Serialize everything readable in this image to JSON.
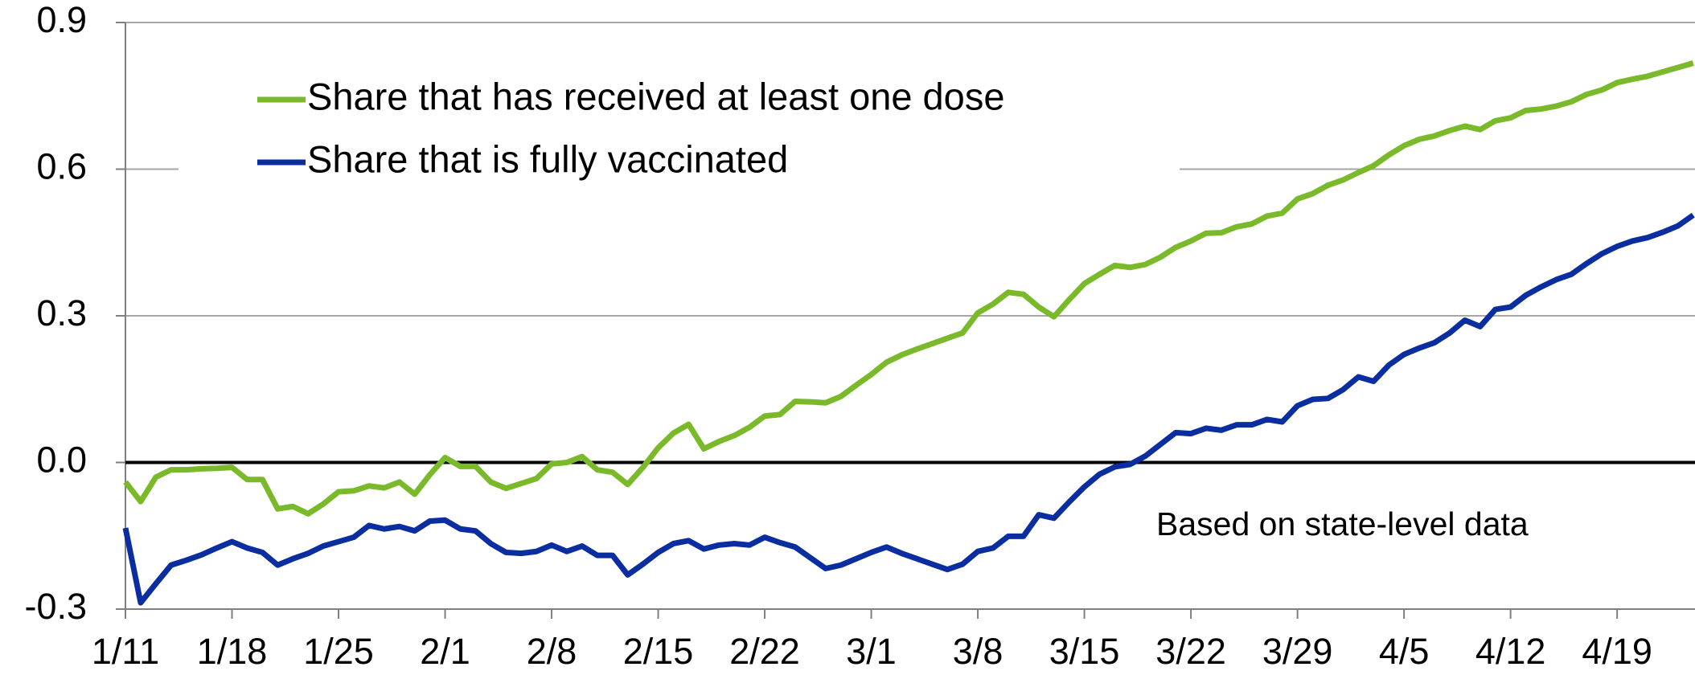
{
  "chart_data": {
    "type": "line",
    "categories": [
      "1/11",
      null,
      null,
      null,
      null,
      null,
      null,
      "1/18",
      null,
      null,
      null,
      null,
      null,
      null,
      "1/25",
      null,
      null,
      null,
      null,
      null,
      null,
      "2/1",
      null,
      null,
      null,
      null,
      null,
      null,
      "2/8",
      null,
      null,
      null,
      null,
      null,
      null,
      "2/15",
      null,
      null,
      null,
      null,
      null,
      null,
      "2/22",
      null,
      null,
      null,
      null,
      null,
      null,
      "3/1",
      null,
      null,
      null,
      null,
      null,
      null,
      "3/8",
      null,
      null,
      null,
      null,
      null,
      null,
      "3/15",
      null,
      null,
      null,
      null,
      null,
      null,
      "3/22",
      null,
      null,
      null,
      null,
      null,
      null,
      "3/29",
      null,
      null,
      null,
      null,
      null,
      null,
      "4/5",
      null,
      null,
      null,
      null,
      null,
      null,
      "4/12",
      null,
      null,
      null,
      null,
      null,
      null,
      "4/19",
      null,
      null,
      null,
      null,
      null
    ],
    "series": [
      {
        "name": "Share that has received at least one dose",
        "color": "#7aba2a",
        "values": [
          -0.04,
          -0.08,
          -0.03,
          -0.015,
          -0.015,
          -0.013,
          -0.012,
          -0.01,
          -0.035,
          -0.035,
          -0.095,
          -0.09,
          -0.105,
          -0.085,
          -0.06,
          -0.058,
          -0.048,
          -0.052,
          -0.04,
          -0.065,
          -0.025,
          0.01,
          -0.008,
          -0.008,
          -0.04,
          -0.053,
          -0.043,
          -0.033,
          -0.003,
          0,
          0.012,
          -0.015,
          -0.02,
          -0.045,
          -0.01,
          0.03,
          0.06,
          0.078,
          0.028,
          0.043,
          0.055,
          0.072,
          0.095,
          0.098,
          0.125,
          0.124,
          0.122,
          0.135,
          0.158,
          0.18,
          0.205,
          0.22,
          0.232,
          0.243,
          0.254,
          0.265,
          0.306,
          0.324,
          0.348,
          0.344,
          0.318,
          0.298,
          0.333,
          0.366,
          0.385,
          0.403,
          0.399,
          0.405,
          0.42,
          0.44,
          0.453,
          0.469,
          0.47,
          0.482,
          0.488,
          0.504,
          0.51,
          0.539,
          0.55,
          0.567,
          0.578,
          0.593,
          0.607,
          0.629,
          0.648,
          0.661,
          0.668,
          0.679,
          0.688,
          0.681,
          0.699,
          0.705,
          0.72,
          0.723,
          0.729,
          0.738,
          0.753,
          0.762,
          0.777,
          0.784,
          0.79,
          0.799,
          0.808,
          0.817
        ]
      },
      {
        "name": "Share that is fully vaccinated",
        "color": "#0a2ea0",
        "values": [
          -0.134,
          -0.287,
          -0.248,
          -0.21,
          -0.2,
          -0.189,
          -0.175,
          -0.162,
          -0.175,
          -0.184,
          -0.21,
          -0.197,
          -0.186,
          -0.171,
          -0.162,
          -0.153,
          -0.129,
          -0.136,
          -0.131,
          -0.14,
          -0.12,
          -0.118,
          -0.136,
          -0.14,
          -0.166,
          -0.184,
          -0.186,
          -0.182,
          -0.169,
          -0.182,
          -0.171,
          -0.19,
          -0.19,
          -0.23,
          -0.208,
          -0.184,
          -0.166,
          -0.16,
          -0.177,
          -0.169,
          -0.166,
          -0.169,
          -0.153,
          -0.164,
          -0.173,
          -0.195,
          -0.217,
          -0.21,
          -0.197,
          -0.184,
          -0.173,
          -0.186,
          -0.197,
          -0.208,
          -0.219,
          -0.208,
          -0.182,
          -0.175,
          -0.151,
          -0.151,
          -0.107,
          -0.114,
          -0.081,
          -0.05,
          -0.024,
          -0.009,
          -0.004,
          0.013,
          0.037,
          0.061,
          0.059,
          0.07,
          0.066,
          0.077,
          0.077,
          0.088,
          0.083,
          0.116,
          0.129,
          0.131,
          0.149,
          0.175,
          0.166,
          0.199,
          0.221,
          0.234,
          0.245,
          0.265,
          0.291,
          0.278,
          0.313,
          0.318,
          0.342,
          0.359,
          0.374,
          0.385,
          0.407,
          0.427,
          0.442,
          0.453,
          0.46,
          0.471,
          0.484,
          0.506
        ]
      }
    ],
    "ylim": [
      -0.3,
      0.9
    ],
    "yticks": [
      -0.3,
      {
        "value": 0,
        "label": "0.0"
      },
      0.3,
      0.6,
      0.9
    ],
    "grid": true,
    "legend": "upper left",
    "annotation": "Based on state-level data"
  }
}
